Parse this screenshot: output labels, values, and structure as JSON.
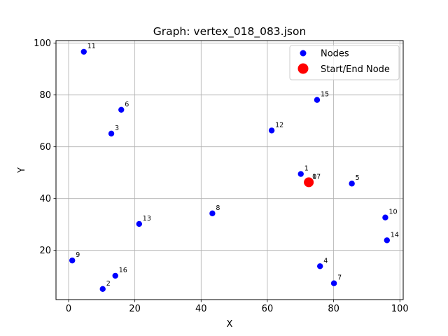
{
  "chart_data": {
    "type": "scatter",
    "title": "Graph: vertex_018_083.json",
    "xlabel": "X",
    "ylabel": "Y",
    "xlim": [
      -3.8,
      101
    ],
    "ylim": [
      1,
      101
    ],
    "xticks": [
      0,
      20,
      40,
      60,
      80,
      100
    ],
    "yticks": [
      20,
      40,
      60,
      80,
      100
    ],
    "grid": true,
    "legend": {
      "placement": "top-right",
      "entries": [
        {
          "label": "Nodes",
          "color": "#0000ff"
        },
        {
          "label": "Start/End Node",
          "color": "#ff0000"
        }
      ]
    },
    "series": [
      {
        "name": "Nodes",
        "color": "#0000ff",
        "points": [
          {
            "id": "0",
            "x": 72.5,
            "y": 46.3
          },
          {
            "id": "1",
            "x": 70.1,
            "y": 49.5
          },
          {
            "id": "2",
            "x": 10.3,
            "y": 5.1
          },
          {
            "id": "3",
            "x": 12.9,
            "y": 65.1
          },
          {
            "id": "4",
            "x": 75.9,
            "y": 13.9
          },
          {
            "id": "5",
            "x": 85.5,
            "y": 45.8
          },
          {
            "id": "6",
            "x": 15.9,
            "y": 74.3
          },
          {
            "id": "7",
            "x": 80.1,
            "y": 7.3
          },
          {
            "id": "8",
            "x": 43.4,
            "y": 34.3
          },
          {
            "id": "9",
            "x": 1.1,
            "y": 16.1
          },
          {
            "id": "10",
            "x": 95.6,
            "y": 32.7
          },
          {
            "id": "11",
            "x": 4.6,
            "y": 96.7
          },
          {
            "id": "12",
            "x": 61.3,
            "y": 66.3
          },
          {
            "id": "13",
            "x": 21.3,
            "y": 30.2
          },
          {
            "id": "14",
            "x": 96.1,
            "y": 23.9
          },
          {
            "id": "15",
            "x": 75.0,
            "y": 78.1
          },
          {
            "id": "16",
            "x": 14.1,
            "y": 10.2
          },
          {
            "id": "17",
            "x": 72.5,
            "y": 46.3
          }
        ]
      },
      {
        "name": "Start/End Node",
        "color": "#ff0000",
        "points": [
          {
            "id": "",
            "x": 72.5,
            "y": 46.3
          }
        ]
      }
    ]
  }
}
